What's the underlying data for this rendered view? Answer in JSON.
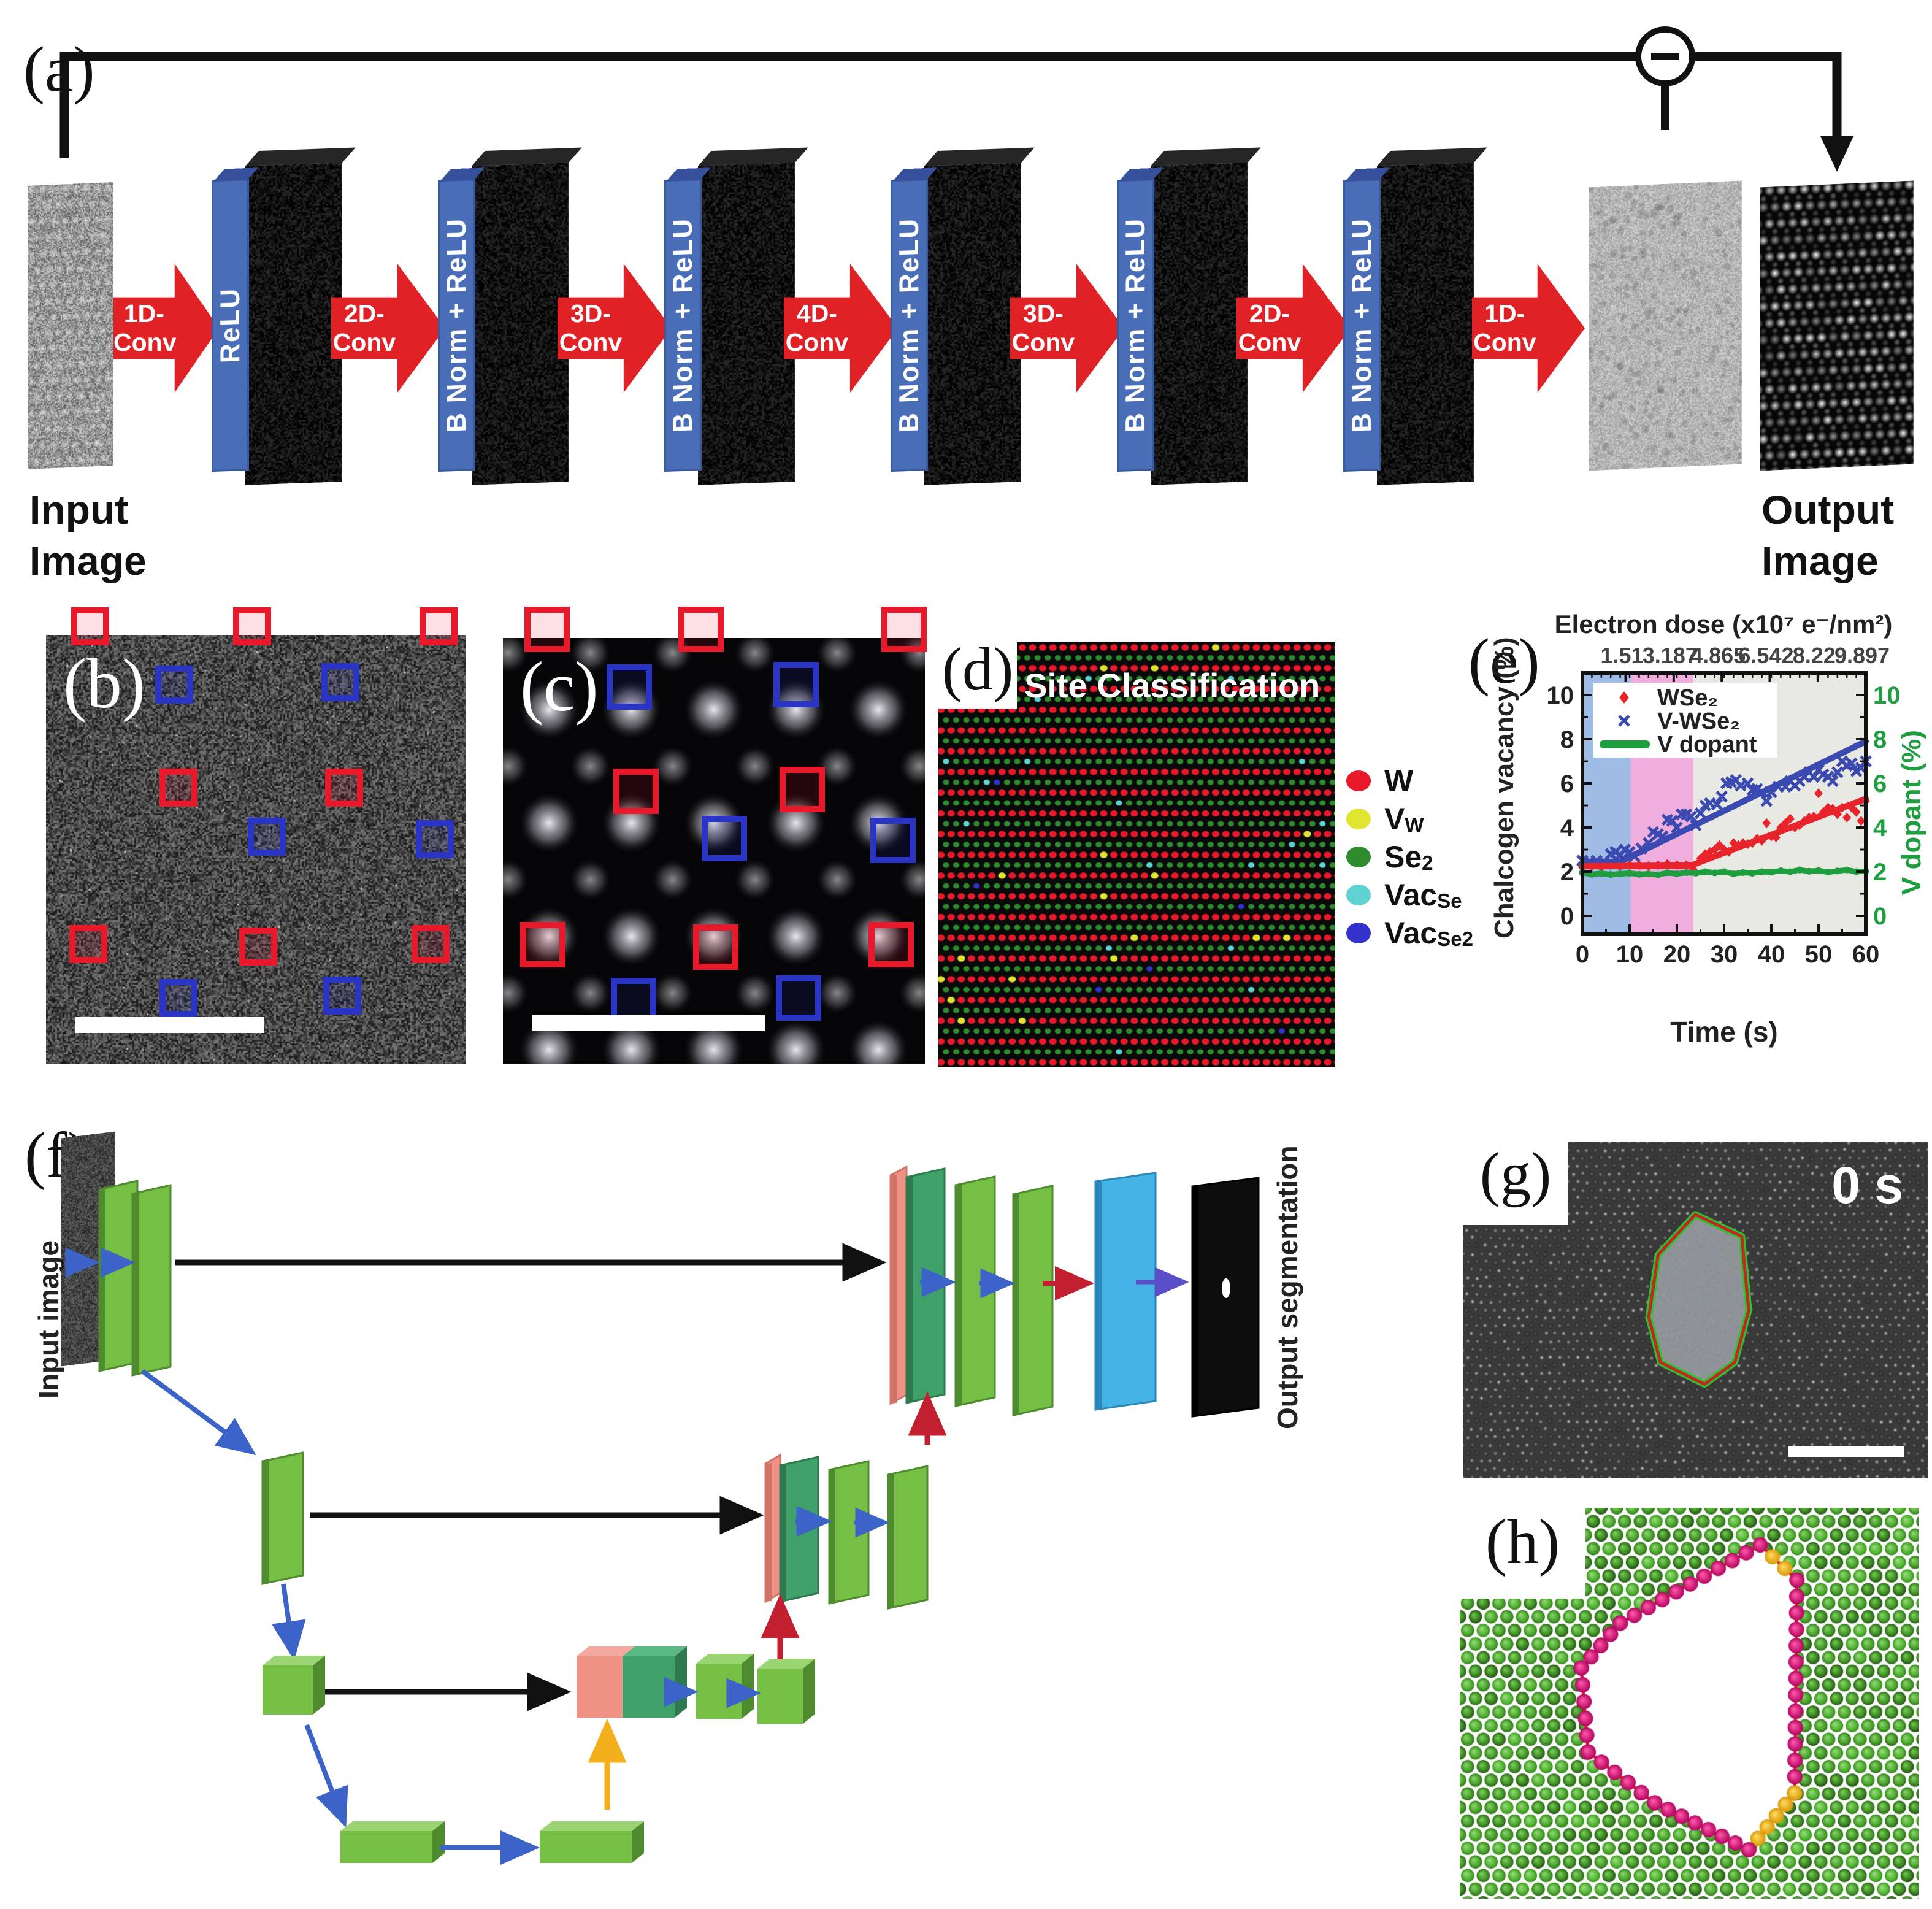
{
  "colors": {
    "arrow_red": "#e02227",
    "bar_blue": "#4a6db8",
    "square_red": "#e8192b",
    "square_blue": "#2b35c5",
    "unet_green": "#74bf44",
    "unet_green_top": "#9ad473",
    "unet_green_dark": "#4e8a2e",
    "unet_pink": "#f09186",
    "unet_teal": "#3fa169",
    "unet_blue_panel": "#45b3e6",
    "skip_black": "#111111",
    "up_red": "#c22030",
    "bottleneck_yellow": "#f2b01c",
    "conv_blue": "#3c64c8",
    "final_violet": "#5a4fc8"
  },
  "panels": {
    "a": {
      "label": "(a)",
      "input_caption": "Input\nImage",
      "output_caption": "Output\nImage",
      "minus": "−",
      "steps": [
        {
          "kind": "arrow",
          "label": "1D-Conv"
        },
        {
          "kind": "act",
          "label": "ReLU"
        },
        {
          "kind": "arrow",
          "label": "2D-Conv"
        },
        {
          "kind": "act",
          "label": "B Norm + ReLU"
        },
        {
          "kind": "arrow",
          "label": "3D-Conv"
        },
        {
          "kind": "act",
          "label": "B Norm + ReLU"
        },
        {
          "kind": "arrow",
          "label": "4D-Conv"
        },
        {
          "kind": "act",
          "label": "B Norm + ReLU"
        },
        {
          "kind": "arrow",
          "label": "3D-Conv"
        },
        {
          "kind": "act",
          "label": "B Norm + ReLU"
        },
        {
          "kind": "arrow",
          "label": "2D-Conv"
        },
        {
          "kind": "act",
          "label": "B Norm + ReLU"
        },
        {
          "kind": "arrow",
          "label": "1D-Conv"
        }
      ]
    },
    "b": {
      "label": "(b)",
      "squares": [
        {
          "fx": 0.105,
          "fy": -0.02,
          "c": "red"
        },
        {
          "fx": 0.49,
          "fy": -0.02,
          "c": "red"
        },
        {
          "fx": 0.935,
          "fy": -0.02,
          "c": "red"
        },
        {
          "fx": 0.305,
          "fy": 0.115,
          "c": "blue"
        },
        {
          "fx": 0.7,
          "fy": 0.11,
          "c": "blue"
        },
        {
          "fx": 0.315,
          "fy": 0.355,
          "c": "red"
        },
        {
          "fx": 0.71,
          "fy": 0.355,
          "c": "red"
        },
        {
          "fx": 0.525,
          "fy": 0.47,
          "c": "blue"
        },
        {
          "fx": 0.925,
          "fy": 0.475,
          "c": "blue"
        },
        {
          "fx": 0.1,
          "fy": 0.72,
          "c": "red"
        },
        {
          "fx": 0.505,
          "fy": 0.725,
          "c": "red"
        },
        {
          "fx": 0.915,
          "fy": 0.72,
          "c": "red"
        },
        {
          "fx": 0.315,
          "fy": 0.845,
          "c": "blue"
        },
        {
          "fx": 0.705,
          "fy": 0.84,
          "c": "blue"
        }
      ]
    },
    "c": {
      "label": "(c)",
      "squares": [
        {
          "fx": 0.105,
          "fy": -0.02,
          "c": "red"
        },
        {
          "fx": 0.47,
          "fy": -0.02,
          "c": "red"
        },
        {
          "fx": 0.95,
          "fy": -0.02,
          "c": "red"
        },
        {
          "fx": 0.3,
          "fy": 0.115,
          "c": "blue"
        },
        {
          "fx": 0.695,
          "fy": 0.11,
          "c": "blue"
        },
        {
          "fx": 0.315,
          "fy": 0.36,
          "c": "red"
        },
        {
          "fx": 0.71,
          "fy": 0.355,
          "c": "red"
        },
        {
          "fx": 0.525,
          "fy": 0.47,
          "c": "blue"
        },
        {
          "fx": 0.925,
          "fy": 0.475,
          "c": "blue"
        },
        {
          "fx": 0.095,
          "fy": 0.72,
          "c": "red"
        },
        {
          "fx": 0.505,
          "fy": 0.725,
          "c": "red"
        },
        {
          "fx": 0.92,
          "fy": 0.72,
          "c": "red"
        },
        {
          "fx": 0.31,
          "fy": 0.85,
          "c": "blue"
        },
        {
          "fx": 0.7,
          "fy": 0.845,
          "c": "blue"
        }
      ]
    },
    "d": {
      "label": "(d)",
      "title": "Site Classification",
      "legend": [
        {
          "color": "#e8192b",
          "main": "W",
          "sub": ""
        },
        {
          "color": "#e2e432",
          "main": "V",
          "sub": "W"
        },
        {
          "color": "#2e8b2e",
          "main": "Se",
          "sub": "2"
        },
        {
          "color": "#5fd3d3",
          "main": "Vac",
          "sub": "Se"
        },
        {
          "color": "#3333cc",
          "main": "Vac",
          "sub": "Se2"
        }
      ]
    },
    "e": {
      "label": "(e)",
      "chart_data": {
        "type": "scatter",
        "top_axis": {
          "label": "Electron dose (x10⁷ e⁻/nm²)",
          "ticks": [
            "1.51",
            "3.187",
            "4.865",
            "6.542",
            "8.22",
            "9.897"
          ],
          "tick_times": [
            9.16,
            19.33,
            29.5,
            39.67,
            49.85,
            60
          ]
        },
        "x_axis": {
          "label": "Time (s)",
          "range": [
            0,
            60
          ],
          "ticks": [
            0,
            10,
            20,
            30,
            40,
            50,
            60
          ]
        },
        "y_left": {
          "label": "Chalcogen vacancy (%)",
          "range": [
            0,
            10
          ],
          "ticks": [
            0,
            2,
            4,
            6,
            8,
            10
          ]
        },
        "y_right": {
          "label": "V dopant (%)",
          "ticks": [
            0,
            2,
            4,
            6,
            8,
            10
          ],
          "color": "#1f9e40"
        },
        "bands": [
          {
            "from": 0,
            "to": 10.2,
            "color": "#9fbde4"
          },
          {
            "from": 10.2,
            "to": 23.5,
            "color": "#efaede"
          },
          {
            "from": 23.5,
            "to": 60,
            "color": "#e9e9e3"
          }
        ],
        "series": [
          {
            "name": "WSe₂",
            "marker": "diamond",
            "color": "#e8232a",
            "points": [
              [
                0,
                2.2
              ],
              [
                2,
                2.25
              ],
              [
                4,
                2.2
              ],
              [
                6,
                2.3
              ],
              [
                8,
                2.25
              ],
              [
                10,
                2.3
              ],
              [
                12,
                2.3
              ],
              [
                14,
                2.25
              ],
              [
                16,
                2.3
              ],
              [
                18,
                2.35
              ],
              [
                20,
                2.3
              ],
              [
                22,
                2.3
              ],
              [
                23.5,
                2.1
              ],
              [
                25,
                2.6
              ],
              [
                26,
                2.8
              ],
              [
                27,
                2.9
              ],
              [
                28,
                3.0
              ],
              [
                29,
                3.2
              ],
              [
                30,
                3.0
              ],
              [
                31,
                2.9
              ],
              [
                32,
                3.3
              ],
              [
                33,
                3.2
              ],
              [
                34,
                3.3
              ],
              [
                35,
                3.25
              ],
              [
                36,
                3.3
              ],
              [
                37,
                3.5
              ],
              [
                38,
                3.4
              ],
              [
                39,
                4.2
              ],
              [
                40,
                3.6
              ],
              [
                41,
                3.55
              ],
              [
                42,
                4.0
              ],
              [
                43,
                4.2
              ],
              [
                44,
                4.4
              ],
              [
                45,
                4.0
              ],
              [
                46,
                4.1
              ],
              [
                47,
                4.3
              ],
              [
                48,
                4.45
              ],
              [
                49,
                4.5
              ],
              [
                50,
                5.55
              ],
              [
                51,
                4.7
              ],
              [
                52,
                4.9
              ],
              [
                53,
                4.85
              ],
              [
                54,
                4.6
              ],
              [
                55,
                4.9
              ],
              [
                56,
                4.45
              ],
              [
                57,
                4.9
              ],
              [
                58,
                4.7
              ],
              [
                59,
                4.3
              ],
              [
                60,
                5.2
              ]
            ]
          },
          {
            "name": "V-WSe₂",
            "marker": "x",
            "color": "#3a4ab0",
            "points": [
              [
                0,
                2.5
              ],
              [
                1.5,
                2.45
              ],
              [
                3,
                2.5
              ],
              [
                4.5,
                2.45
              ],
              [
                6,
                2.8
              ],
              [
                7,
                2.9
              ],
              [
                8,
                2.75
              ],
              [
                9,
                3.0
              ],
              [
                10,
                2.9
              ],
              [
                11,
                2.7
              ],
              [
                12.5,
                3.05
              ],
              [
                14,
                3.3
              ],
              [
                15,
                3.8
              ],
              [
                16,
                3.7
              ],
              [
                17,
                3.6
              ],
              [
                18,
                4.35
              ],
              [
                19,
                4.3
              ],
              [
                20,
                4.0
              ],
              [
                21,
                4.6
              ],
              [
                22,
                4.6
              ],
              [
                23,
                4.5
              ],
              [
                24,
                4.1
              ],
              [
                25,
                4.65
              ],
              [
                26,
                5.0
              ],
              [
                27,
                5.1
              ],
              [
                28.5,
                5.05
              ],
              [
                29.5,
                5.4
              ],
              [
                30.5,
                6.0
              ],
              [
                31.5,
                6.05
              ],
              [
                32.5,
                6.15
              ],
              [
                33.5,
                5.9
              ],
              [
                35,
                6.0
              ],
              [
                36,
                5.7
              ],
              [
                37,
                5.75
              ],
              [
                38,
                5.6
              ],
              [
                39,
                5.2
              ],
              [
                40,
                5.6
              ],
              [
                41.5,
                5.85
              ],
              [
                43,
                5.85
              ],
              [
                44,
                6.1
              ],
              [
                45,
                5.9
              ],
              [
                46,
                6.1
              ],
              [
                47,
                6.3
              ],
              [
                48,
                6.5
              ],
              [
                49,
                6.3
              ],
              [
                50,
                6.6
              ],
              [
                51,
                6.4
              ],
              [
                52,
                6.3
              ],
              [
                53,
                6.1
              ],
              [
                54,
                6.5
              ],
              [
                55,
                7.0
              ],
              [
                56,
                6.8
              ],
              [
                57,
                6.9
              ],
              [
                58,
                6.55
              ],
              [
                59,
                6.7
              ],
              [
                60,
                7.0
              ]
            ]
          },
          {
            "name": "V dopant",
            "marker": "line",
            "color": "#1f9e40",
            "points": [
              [
                0,
                1.95
              ],
              [
                2,
                1.88
              ],
              [
                4,
                1.92
              ],
              [
                6,
                1.87
              ],
              [
                8,
                1.9
              ],
              [
                10,
                1.93
              ],
              [
                12,
                1.88
              ],
              [
                14,
                1.9
              ],
              [
                16,
                1.86
              ],
              [
                18,
                1.95
              ],
              [
                20,
                1.9
              ],
              [
                22,
                1.96
              ],
              [
                24,
                1.93
              ],
              [
                26,
                2.0
              ],
              [
                28,
                1.95
              ],
              [
                30,
                2.0
              ],
              [
                32,
                1.9
              ],
              [
                34,
                1.96
              ],
              [
                36,
                1.93
              ],
              [
                38,
                2.0
              ],
              [
                40,
                1.98
              ],
              [
                42,
                2.04
              ],
              [
                44,
                2.0
              ],
              [
                46,
                2.08
              ],
              [
                48,
                2.02
              ],
              [
                50,
                2.05
              ],
              [
                52,
                1.98
              ],
              [
                54,
                2.03
              ],
              [
                56,
                2.08
              ],
              [
                58,
                2.0
              ],
              [
                60,
                2.02
              ]
            ]
          }
        ],
        "fits": [
          {
            "series": "V-WSe₂",
            "color": "#3a4ab0",
            "points": [
              [
                0,
                2.38
              ],
              [
                8,
                2.45
              ],
              [
                60,
                7.9
              ]
            ]
          },
          {
            "series": "WSe₂",
            "color": "#e8232a",
            "points": [
              [
                0,
                2.25
              ],
              [
                23,
                2.28
              ],
              [
                60,
                5.3
              ]
            ]
          }
        ],
        "legend": [
          {
            "marker": "diamond",
            "color": "#e8232a",
            "label": "WSe₂"
          },
          {
            "marker": "x",
            "color": "#3a4ab0",
            "label": "V-WSe₂"
          },
          {
            "marker": "line",
            "color": "#1f9e40",
            "label": "V dopant"
          }
        ],
        "legend_position": "top-left"
      }
    },
    "f": {
      "label": "(f)",
      "input_label": "Input image",
      "output_label": "Output segmentation"
    },
    "g": {
      "label": "(g)",
      "time_label": "0 s"
    },
    "h": {
      "label": "(h)"
    }
  }
}
